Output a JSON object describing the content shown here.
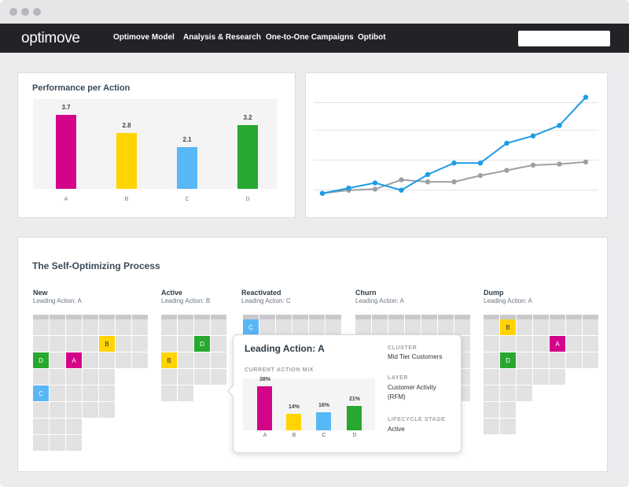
{
  "nav": {
    "logo": "optimove",
    "links": [
      "Optimove Model",
      "Analysis & Research",
      "One-to-One Campaigns",
      "Optibot"
    ]
  },
  "performance": {
    "title": "Performance per Action",
    "chart_data": {
      "type": "bar",
      "categories": [
        "A",
        "B",
        "C",
        "D"
      ],
      "values": [
        3.7,
        2.8,
        2.1,
        3.2
      ],
      "colors": [
        "#d4048a",
        "#ffd400",
        "#58b7f5",
        "#27a82f"
      ],
      "title": "Performance per Action",
      "ylim": [
        0,
        4.5
      ]
    }
  },
  "trend": {
    "chart_data": {
      "type": "line",
      "x": [
        1,
        2,
        3,
        4,
        5,
        6,
        7,
        8,
        9,
        10,
        11
      ],
      "series": [
        {
          "values": [
            1.0,
            1.5,
            2.0,
            1.3,
            2.8,
            3.9,
            3.9,
            5.8,
            6.5,
            7.5,
            10.2
          ],
          "color": "#1d9ce5"
        },
        {
          "values": [
            1.0,
            1.3,
            1.4,
            2.3,
            2.1,
            2.1,
            2.7,
            3.2,
            3.7,
            3.8,
            4.0
          ],
          "color": "#9aa0a4"
        }
      ],
      "grid": true,
      "ylim": [
        0,
        11
      ]
    }
  },
  "process": {
    "title": "The Self-Optimizing Process",
    "segments": [
      {
        "name": "New",
        "leading": "Leading Action: A"
      },
      {
        "name": "Active",
        "leading": "Leading Action: B"
      },
      {
        "name": "Reactivated",
        "leading": "Leading Action: C"
      },
      {
        "name": "Churn",
        "leading": "Leading Action: A"
      },
      {
        "name": "Dump",
        "leading": "Leading Action: A"
      }
    ]
  },
  "popup": {
    "title": "Leading Action: A",
    "mix_label": "CURRENT ACTION MIX",
    "chart_data": {
      "type": "bar",
      "categories": [
        "A",
        "B",
        "C",
        "D"
      ],
      "values": [
        38,
        14,
        16,
        21
      ],
      "value_labels": [
        "38%",
        "14%",
        "16%",
        "21%"
      ],
      "colors": [
        "#d4048a",
        "#ffd400",
        "#58b7f5",
        "#27a82f"
      ],
      "ylim": [
        0,
        45
      ]
    },
    "cluster_label": "CLUSTER",
    "cluster_value": "Mid Tier Customers",
    "layer_label": "LAYER",
    "layer_value": "Customer Activity (RFM)",
    "stage_label": "LIFECYCLE STAGE",
    "stage_value": "Active"
  },
  "colors": {
    "A": "#d4048a",
    "B": "#ffd400",
    "C": "#58b7f5",
    "D": "#27a82f"
  }
}
